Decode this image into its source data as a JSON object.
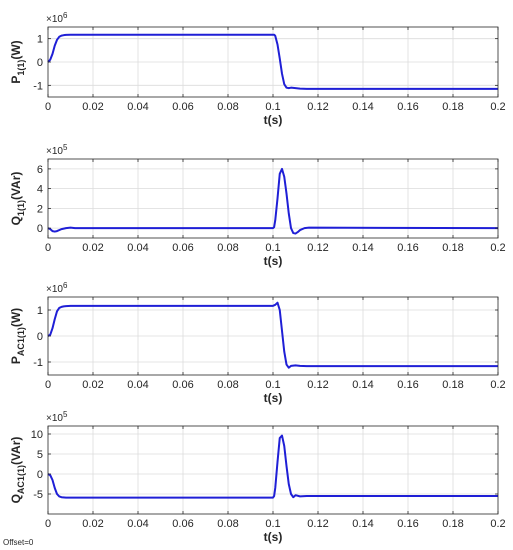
{
  "footer": "Offset=0",
  "style": {
    "line_color": "#1f1fd6",
    "grid_color": "#dcdcdc",
    "axis_color": "#262626"
  },
  "chart_data": [
    {
      "type": "line",
      "ylabel_main": "P",
      "ylabel_sub": "1(1)",
      "ylabel_unit": "(W)",
      "exponent_base": "×10",
      "exponent_power": "6",
      "xlabel": "t(s)",
      "xlim": [
        0,
        0.2
      ],
      "ylim": [
        -1.5,
        1.5
      ],
      "xticks": [
        0,
        0.02,
        0.04,
        0.06,
        0.08,
        0.1,
        0.12,
        0.14,
        0.16,
        0.18,
        0.2
      ],
      "xtick_labels": [
        "0",
        "0.02",
        "0.04",
        "0.06",
        "0.08",
        "0.1",
        "0.12",
        "0.14",
        "0.16",
        "0.18",
        "0.2"
      ],
      "yticks": [
        -1,
        0,
        1
      ],
      "ytick_labels": [
        "-1",
        "0",
        "1"
      ],
      "grid": true,
      "series": [
        {
          "x": [
            0,
            0.001,
            0.002,
            0.003,
            0.004,
            0.005,
            0.006,
            0.007,
            0.008,
            0.01,
            0.012,
            0.1,
            0.1005,
            0.101,
            0.102,
            0.103,
            0.104,
            0.105,
            0.106,
            0.107,
            0.108,
            0.11,
            0.112,
            0.115,
            0.2
          ],
          "y": [
            0,
            0.1,
            0.35,
            0.7,
            0.95,
            1.08,
            1.13,
            1.15,
            1.16,
            1.17,
            1.17,
            1.17,
            1.17,
            1.12,
            0.75,
            0.15,
            -0.5,
            -0.95,
            -1.1,
            -1.12,
            -1.1,
            -1.12,
            -1.14,
            -1.15,
            -1.15
          ]
        }
      ]
    },
    {
      "type": "line",
      "ylabel_main": "Q",
      "ylabel_sub": "1(1)",
      "ylabel_unit": "(VAr)",
      "exponent_base": "×10",
      "exponent_power": "5",
      "xlabel": "t(s)",
      "xlim": [
        0,
        0.2
      ],
      "ylim": [
        -1,
        7
      ],
      "xticks": [
        0,
        0.02,
        0.04,
        0.06,
        0.08,
        0.1,
        0.12,
        0.14,
        0.16,
        0.18,
        0.2
      ],
      "xtick_labels": [
        "0",
        "0.02",
        "0.04",
        "0.06",
        "0.08",
        "0.1",
        "0.12",
        "0.14",
        "0.16",
        "0.18",
        "0.2"
      ],
      "yticks": [
        0,
        2,
        4,
        6
      ],
      "ytick_labels": [
        "0",
        "2",
        "4",
        "6"
      ],
      "grid": true,
      "series": [
        {
          "x": [
            0,
            0.001,
            0.002,
            0.003,
            0.004,
            0.006,
            0.008,
            0.01,
            0.012,
            0.1,
            0.1005,
            0.101,
            0.102,
            0.103,
            0.104,
            0.105,
            0.106,
            0.107,
            0.108,
            0.109,
            0.11,
            0.111,
            0.112,
            0.114,
            0.116,
            0.2
          ],
          "y": [
            0,
            -0.1,
            -0.3,
            -0.35,
            -0.3,
            -0.1,
            0,
            0.05,
            0,
            0,
            0.1,
            0.8,
            3.0,
            5.5,
            6.0,
            5.2,
            3.5,
            1.5,
            0,
            -0.5,
            -0.55,
            -0.4,
            -0.2,
            0,
            0.05,
            0
          ]
        }
      ]
    },
    {
      "type": "line",
      "ylabel_main": "P",
      "ylabel_sub": "AC1(1)",
      "ylabel_unit": "(W)",
      "exponent_base": "×10",
      "exponent_power": "6",
      "xlabel": "t(s)",
      "xlim": [
        0,
        0.2
      ],
      "ylim": [
        -1.5,
        1.5
      ],
      "xticks": [
        0,
        0.02,
        0.04,
        0.06,
        0.08,
        0.1,
        0.12,
        0.14,
        0.16,
        0.18,
        0.2
      ],
      "xtick_labels": [
        "0",
        "0.02",
        "0.04",
        "0.06",
        "0.08",
        "0.1",
        "0.12",
        "0.14",
        "0.16",
        "0.18",
        "0.2"
      ],
      "yticks": [
        -1,
        0,
        1
      ],
      "ytick_labels": [
        "-1",
        "0",
        "1"
      ],
      "grid": true,
      "series": [
        {
          "x": [
            0,
            0.001,
            0.002,
            0.003,
            0.004,
            0.005,
            0.006,
            0.007,
            0.008,
            0.01,
            0.012,
            0.1,
            0.101,
            0.102,
            0.103,
            0.104,
            0.105,
            0.106,
            0.107,
            0.108,
            0.11,
            0.112,
            0.115,
            0.2
          ],
          "y": [
            0,
            0.05,
            0.3,
            0.65,
            0.95,
            1.08,
            1.12,
            1.14,
            1.15,
            1.16,
            1.16,
            1.16,
            1.2,
            1.28,
            1.0,
            0.2,
            -0.6,
            -1.1,
            -1.22,
            -1.15,
            -1.13,
            -1.15,
            -1.16,
            -1.16
          ]
        }
      ]
    },
    {
      "type": "line",
      "ylabel_main": "Q",
      "ylabel_sub": "AC1(1)",
      "ylabel_unit": "(VAr)",
      "exponent_base": "×10",
      "exponent_power": "5",
      "xlabel": "t(s)",
      "xlim": [
        0,
        0.2
      ],
      "ylim": [
        -10,
        12
      ],
      "xticks": [
        0,
        0.02,
        0.04,
        0.06,
        0.08,
        0.1,
        0.12,
        0.14,
        0.16,
        0.18,
        0.2
      ],
      "xtick_labels": [
        "0",
        "0.02",
        "0.04",
        "0.06",
        "0.08",
        "0.1",
        "0.12",
        "0.14",
        "0.16",
        "0.18",
        "0.2"
      ],
      "yticks": [
        -5,
        0,
        5,
        10
      ],
      "ytick_labels": [
        "-5",
        "0",
        "5",
        "10"
      ],
      "grid": true,
      "series": [
        {
          "x": [
            0,
            0.001,
            0.002,
            0.003,
            0.004,
            0.005,
            0.006,
            0.008,
            0.01,
            0.1,
            0.1005,
            0.101,
            0.102,
            0.103,
            0.104,
            0.105,
            0.106,
            0.107,
            0.108,
            0.109,
            0.11,
            0.112,
            0.115,
            0.2
          ],
          "y": [
            0,
            -0.3,
            -1.5,
            -3.5,
            -5.0,
            -5.6,
            -5.8,
            -5.9,
            -5.9,
            -5.9,
            -5.5,
            -3.5,
            3.0,
            9.0,
            9.6,
            7.0,
            2.0,
            -2.5,
            -5.0,
            -5.8,
            -5.3,
            -5.6,
            -5.5,
            -5.5
          ]
        }
      ]
    }
  ]
}
